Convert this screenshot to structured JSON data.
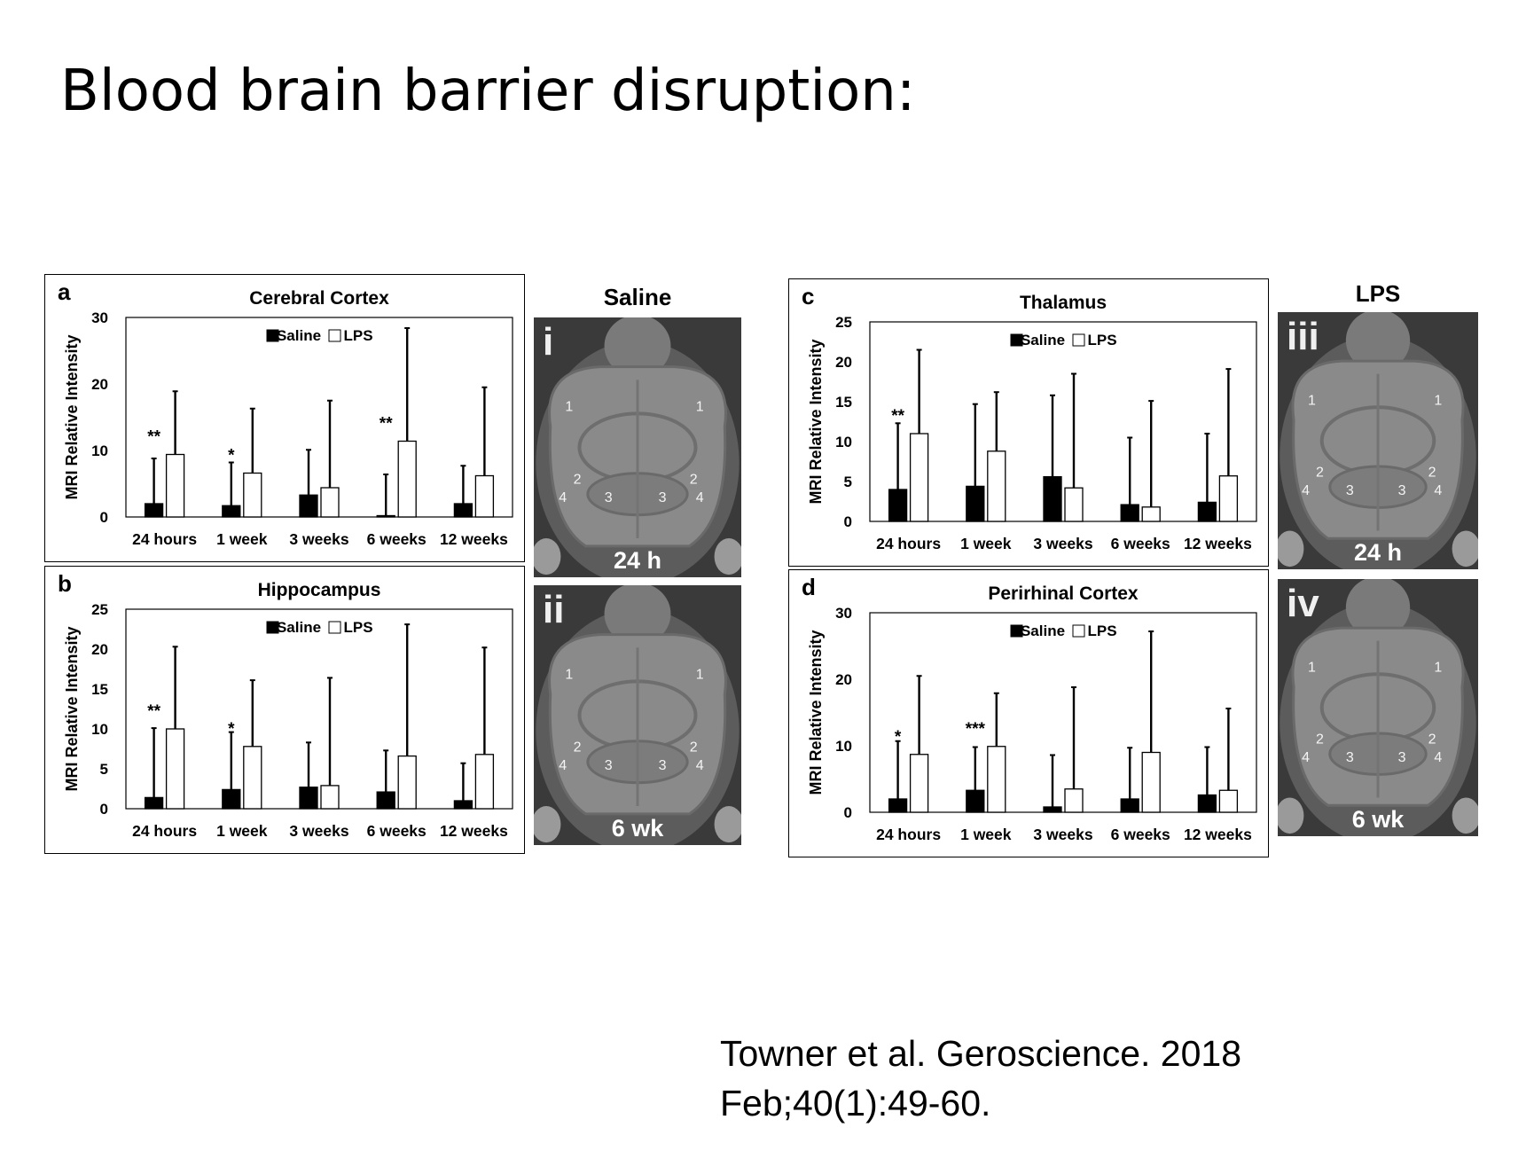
{
  "slide": {
    "title": "Blood brain barrier disruption:",
    "citation_line1": "Towner  et al. Geroscience. 2018",
    "citation_line2": "Feb;40(1):49-60."
  },
  "legend": {
    "saline": "Saline",
    "lps": "LPS"
  },
  "colors": {
    "saline_fill": "#000000",
    "lps_fill": "#ffffff",
    "axis": "#000000"
  },
  "chart_data": [
    {
      "panel": "a",
      "type": "bar",
      "title": "Cerebral Cortex",
      "ylabel": "MRI Relative Intensity",
      "ylim": [
        0,
        30
      ],
      "yticks": [
        0,
        10,
        20,
        30
      ],
      "categories": [
        "24 hours",
        "1 week",
        "3 weeks",
        "6 weeks",
        "12 weeks"
      ],
      "series": [
        {
          "name": "Saline",
          "values": [
            2.0,
            1.7,
            3.3,
            0.2,
            2.0
          ],
          "errors": [
            6.8,
            6.5,
            6.8,
            6.2,
            5.7
          ]
        },
        {
          "name": "LPS",
          "values": [
            9.4,
            6.6,
            4.4,
            11.4,
            6.2
          ],
          "errors": [
            9.5,
            9.7,
            13.1,
            17.0,
            13.3
          ]
        }
      ],
      "significance": [
        "**",
        "*",
        "",
        "**",
        ""
      ],
      "legend_position": "top-center"
    },
    {
      "panel": "b",
      "type": "bar",
      "title": "Hippocampus",
      "ylabel": "MRI Relative Intensity",
      "ylim": [
        0,
        25
      ],
      "yticks": [
        0,
        5,
        10,
        15,
        20,
        25
      ],
      "categories": [
        "24 hours",
        "1 week",
        "3 weeks",
        "6 weeks",
        "12 weeks"
      ],
      "series": [
        {
          "name": "Saline",
          "values": [
            1.4,
            2.4,
            2.7,
            2.1,
            1.0
          ],
          "errors": [
            8.7,
            7.2,
            5.6,
            5.2,
            4.7
          ]
        },
        {
          "name": "LPS",
          "values": [
            10.0,
            7.8,
            2.9,
            6.6,
            6.8
          ],
          "errors": [
            10.3,
            8.3,
            13.5,
            16.5,
            13.4
          ]
        }
      ],
      "significance": [
        "**",
        "*",
        "",
        "",
        ""
      ],
      "legend_position": "top-center"
    },
    {
      "panel": "c",
      "type": "bar",
      "title": "Thalamus",
      "ylabel": "MRI Relative Intensity",
      "ylim": [
        0,
        25
      ],
      "yticks": [
        0,
        5,
        10,
        15,
        20,
        25
      ],
      "categories": [
        "24 hours",
        "1 week",
        "3 weeks",
        "6 weeks",
        "12 weeks"
      ],
      "series": [
        {
          "name": "Saline",
          "values": [
            4.0,
            4.4,
            5.6,
            2.1,
            2.4
          ],
          "errors": [
            8.3,
            10.3,
            10.2,
            8.4,
            8.6
          ]
        },
        {
          "name": "LPS",
          "values": [
            11.0,
            8.8,
            4.2,
            1.8,
            5.7
          ],
          "errors": [
            10.5,
            7.4,
            14.3,
            13.3,
            13.4
          ]
        }
      ],
      "significance": [
        "**",
        "",
        "",
        "",
        ""
      ],
      "legend_position": "top-center"
    },
    {
      "panel": "d",
      "type": "bar",
      "title": "Perirhinal Cortex",
      "ylabel": "MRI Relative Intensity",
      "ylim": [
        0,
        30
      ],
      "yticks": [
        0,
        10,
        20,
        30
      ],
      "categories": [
        "24 hours",
        "1 week",
        "3 weeks",
        "6 weeks",
        "12 weeks"
      ],
      "series": [
        {
          "name": "Saline",
          "values": [
            2.0,
            3.3,
            0.8,
            2.0,
            2.6
          ],
          "errors": [
            8.7,
            6.5,
            7.8,
            7.7,
            7.2
          ]
        },
        {
          "name": "LPS",
          "values": [
            8.7,
            9.9,
            3.5,
            9.0,
            3.3
          ],
          "errors": [
            11.8,
            8.0,
            15.3,
            18.2,
            12.3
          ]
        }
      ],
      "significance": [
        "*",
        "***",
        "",
        "",
        ""
      ],
      "legend_position": "top-center"
    }
  ],
  "mri": {
    "saline_header": "Saline",
    "lps_header": "LPS",
    "images": [
      {
        "roman": "i",
        "time": "24 h",
        "regions": [
          "1",
          "1",
          "2",
          "2",
          "3",
          "3",
          "4",
          "4"
        ]
      },
      {
        "roman": "ii",
        "time": "6 wk",
        "regions": [
          "1",
          "1",
          "2",
          "2",
          "3",
          "3",
          "4",
          "4"
        ]
      },
      {
        "roman": "iii",
        "time": "24 h",
        "regions": [
          "1",
          "1",
          "2",
          "2",
          "3",
          "3",
          "4",
          "4"
        ]
      },
      {
        "roman": "iv",
        "time": "6 wk",
        "regions": [
          "1",
          "1",
          "2",
          "2",
          "3",
          "3",
          "4",
          "4"
        ]
      }
    ]
  }
}
